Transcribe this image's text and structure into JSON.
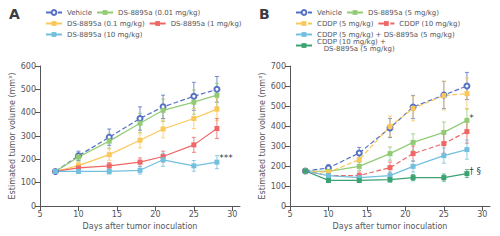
{
  "chart_data": [
    {
      "type": "line",
      "title": "A",
      "xlabel": "Days after tumor inoculation",
      "ylabel": "Estimated tumor volume (mm³)",
      "x": [
        7,
        10,
        14,
        18,
        21,
        25,
        28
      ],
      "xlim": [
        5,
        31
      ],
      "xticks": [
        5,
        10,
        15,
        20,
        25,
        30
      ],
      "ylim": [
        0,
        600
      ],
      "yticks": [
        0,
        100,
        200,
        300,
        400,
        500,
        600
      ],
      "grid": false,
      "legend": "upper left",
      "series": [
        {
          "name": "Vehicle",
          "marker": "emptyCircle",
          "line_style": "dashed",
          "values": [
            148,
            215,
            295,
            375,
            425,
            470,
            500
          ],
          "errors": [
            5,
            20,
            35,
            50,
            50,
            60,
            55
          ]
        },
        {
          "name": "DS-8895a (0.01 mg/kg)",
          "marker": "rect",
          "line_style": "solid",
          "values": [
            148,
            210,
            278,
            355,
            410,
            445,
            475
          ],
          "errors": [
            5,
            18,
            30,
            42,
            48,
            52,
            50
          ]
        },
        {
          "name": "DS-8895a (0.1 mg/kg)",
          "marker": "rect",
          "line_style": "solid",
          "values": [
            148,
            173,
            220,
            282,
            330,
            375,
            415
          ],
          "errors": [
            5,
            14,
            24,
            33,
            38,
            43,
            48
          ]
        },
        {
          "name": "DS-8895a (1 mg/kg)",
          "marker": "rect",
          "line_style": "solid",
          "values": [
            148,
            163,
            172,
            188,
            212,
            262,
            332
          ],
          "errors": [
            5,
            11,
            14,
            18,
            23,
            32,
            43
          ]
        },
        {
          "name": "DS-8895a (10 mg/kg)",
          "marker": "rect",
          "line_style": "solid",
          "values": [
            148,
            148,
            148,
            153,
            198,
            172,
            188
          ],
          "errors": [
            5,
            9,
            11,
            16,
            28,
            23,
            28
          ]
        }
      ],
      "annotations": [
        {
          "text": "***",
          "x": 28.3,
          "y": 205
        }
      ]
    },
    {
      "type": "line",
      "title": "B",
      "xlabel": "Days after tumor inoculation",
      "ylabel": "Estimated tumor volume (mm³)",
      "x": [
        7,
        10,
        14,
        18,
        21,
        25,
        28
      ],
      "xlim": [
        5,
        31
      ],
      "xticks": [
        5,
        10,
        15,
        20,
        25,
        30
      ],
      "ylim": [
        0,
        700
      ],
      "yticks": [
        0,
        100,
        200,
        300,
        400,
        500,
        600,
        700
      ],
      "grid": false,
      "legend": "upper left",
      "series": [
        {
          "name": "Vehicle",
          "marker": "emptyCircle",
          "line_style": "dashed",
          "values": [
            175,
            190,
            265,
            390,
            495,
            555,
            600
          ],
          "errors": [
            8,
            17,
            28,
            48,
            58,
            68,
            68
          ]
        },
        {
          "name": "DS-8895a (5 mg/kg)",
          "marker": "rect",
          "line_style": "solid",
          "values": [
            175,
            173,
            198,
            262,
            318,
            368,
            428
          ],
          "errors": [
            8,
            14,
            20,
            33,
            43,
            52,
            58
          ]
        },
        {
          "name": "CDDP (5 mg/kg)",
          "marker": "rect",
          "line_style": "dashed",
          "values": [
            175,
            168,
            232,
            398,
            488,
            552,
            562
          ],
          "errors": [
            8,
            19,
            33,
            52,
            62,
            72,
            78
          ]
        },
        {
          "name": "CDDP (10 mg/kg)",
          "marker": "rect",
          "line_style": "dashed",
          "values": [
            175,
            152,
            152,
            192,
            262,
            312,
            372
          ],
          "errors": [
            8,
            14,
            18,
            28,
            38,
            48,
            58
          ]
        },
        {
          "name": "CDDP (5 mg/kg) + DS-8895a (5 mg/kg)",
          "marker": "rect",
          "line_style": "solid",
          "values": [
            175,
            152,
            142,
            152,
            198,
            252,
            282
          ],
          "errors": [
            8,
            11,
            14,
            18,
            28,
            38,
            48
          ]
        },
        {
          "name": "CDDP (10 mg/kg) +\n   DS-8895a (5 mg/kg)",
          "marker": "rect",
          "line_style": "solid",
          "values": [
            175,
            128,
            128,
            132,
            142,
            142,
            162
          ],
          "errors": [
            8,
            11,
            11,
            13,
            16,
            18,
            20
          ]
        }
      ],
      "annotations": [
        {
          "text": "*",
          "x": 28.3,
          "y": 440
        },
        {
          "text": "† §",
          "x": 28.3,
          "y": 175
        }
      ]
    }
  ]
}
